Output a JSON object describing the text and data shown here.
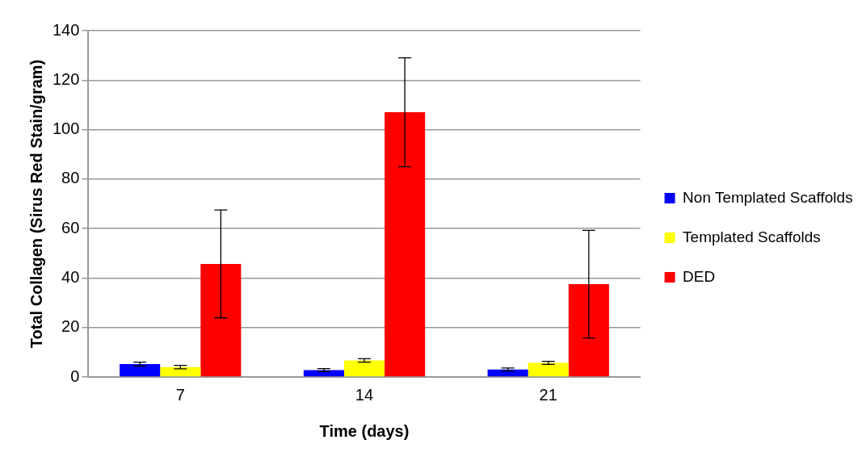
{
  "chart_data": {
    "type": "bar",
    "xlabel": "Time (days)",
    "ylabel": "Total Collagen (Sirus Red Stain/gram)",
    "categories": [
      "7",
      "14",
      "21"
    ],
    "series": [
      {
        "name": "Non Templated Scaffolds",
        "color": "#0000ff",
        "values": [
          5.2,
          2.8,
          3.0
        ],
        "errors": [
          0.8,
          0.6,
          0.6
        ]
      },
      {
        "name": "Templated Scaffolds",
        "color": "#ffff00",
        "values": [
          4.0,
          6.7,
          5.7
        ],
        "errors": [
          0.7,
          0.7,
          0.6
        ]
      },
      {
        "name": "DED",
        "color": "#ff0000",
        "values": [
          45.7,
          107,
          37.5
        ],
        "errors": [
          21.8,
          22,
          21.8
        ]
      }
    ],
    "ylim": [
      0,
      140
    ],
    "yticks": [
      0,
      20,
      40,
      60,
      80,
      100,
      120,
      140
    ],
    "grid": "y",
    "legend": "right"
  }
}
